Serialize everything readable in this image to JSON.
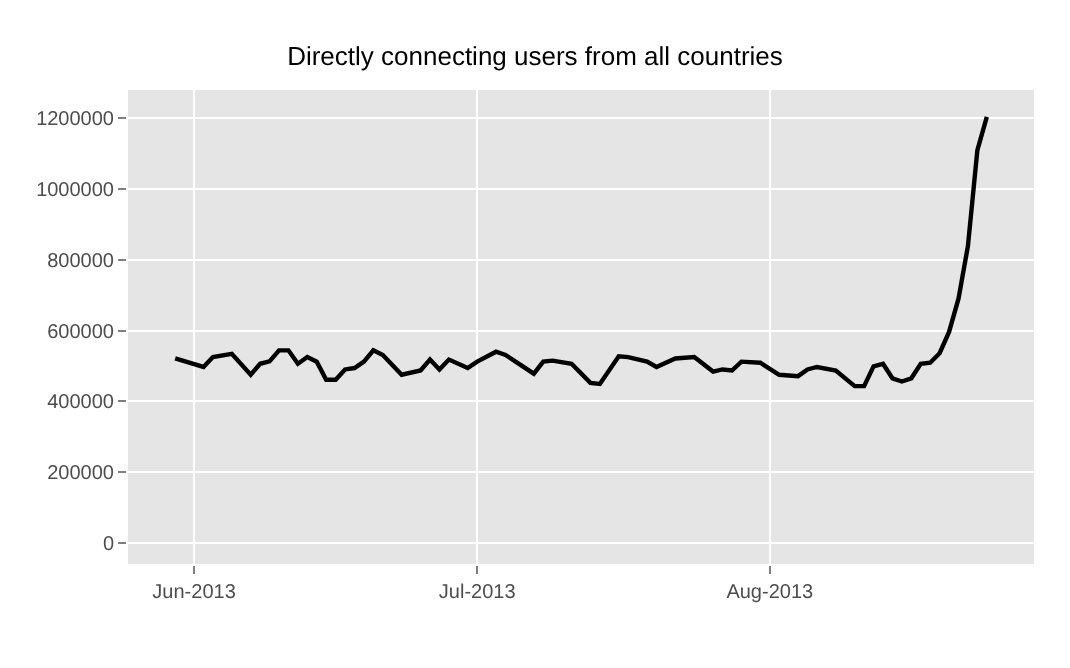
{
  "chart_data": {
    "type": "line",
    "title": "Directly connecting users from all countries",
    "x": [
      "2013-05-30",
      "2013-06-02",
      "2013-06-03",
      "2013-06-05",
      "2013-06-07",
      "2013-06-08",
      "2013-06-09",
      "2013-06-10",
      "2013-06-11",
      "2013-06-12",
      "2013-06-13",
      "2013-06-14",
      "2013-06-15",
      "2013-06-16",
      "2013-06-17",
      "2013-06-18",
      "2013-06-19",
      "2013-06-20",
      "2013-06-21",
      "2013-06-23",
      "2013-06-25",
      "2013-06-26",
      "2013-06-27",
      "2013-06-28",
      "2013-06-30",
      "2013-07-01",
      "2013-07-03",
      "2013-07-04",
      "2013-07-07",
      "2013-07-08",
      "2013-07-09",
      "2013-07-11",
      "2013-07-13",
      "2013-07-14",
      "2013-07-16",
      "2013-07-17",
      "2013-07-19",
      "2013-07-20",
      "2013-07-22",
      "2013-07-24",
      "2013-07-26",
      "2013-07-27",
      "2013-07-28",
      "2013-07-29",
      "2013-07-31",
      "2013-08-02",
      "2013-08-04",
      "2013-08-05",
      "2013-08-06",
      "2013-08-08",
      "2013-08-10",
      "2013-08-11",
      "2013-08-12",
      "2013-08-13",
      "2013-08-14",
      "2013-08-15",
      "2013-08-16",
      "2013-08-17",
      "2013-08-18",
      "2013-08-19",
      "2013-08-20",
      "2013-08-21",
      "2013-08-22",
      "2013-08-23",
      "2013-08-24"
    ],
    "series": [
      {
        "color": "#000000",
        "values": [
          521000,
          497000,
          525000,
          534000,
          475000,
          506000,
          513000,
          544000,
          544000,
          506000,
          525000,
          512000,
          461000,
          461000,
          490000,
          494000,
          512000,
          544000,
          531000,
          475000,
          487000,
          518000,
          490000,
          518000,
          494000,
          512000,
          540000,
          531000,
          478000,
          512000,
          515000,
          506000,
          452000,
          449000,
          527000,
          525000,
          512000,
          497000,
          521000,
          525000,
          484000,
          490000,
          487000,
          512000,
          509000,
          475000,
          471000,
          490000,
          497000,
          487000,
          443000,
          443000,
          499000,
          506000,
          465000,
          456000,
          465000,
          506000,
          509000,
          536000,
          596000,
          690000,
          839000,
          1110000,
          1204000
        ]
      }
    ],
    "xlim": [
      "2013-05-25",
      "2013-08-29"
    ],
    "xticks": [
      {
        "value": "2013-06-01",
        "label": "Jun-2013"
      },
      {
        "value": "2013-07-01",
        "label": "Jul-2013"
      },
      {
        "value": "2013-08-01",
        "label": "Aug-2013"
      }
    ],
    "ylim": [
      -60000,
      1280000
    ],
    "yticks": [
      0,
      200000,
      400000,
      600000,
      800000,
      1000000,
      1200000
    ],
    "grid": true,
    "marker": "none",
    "line_style": "solid"
  }
}
